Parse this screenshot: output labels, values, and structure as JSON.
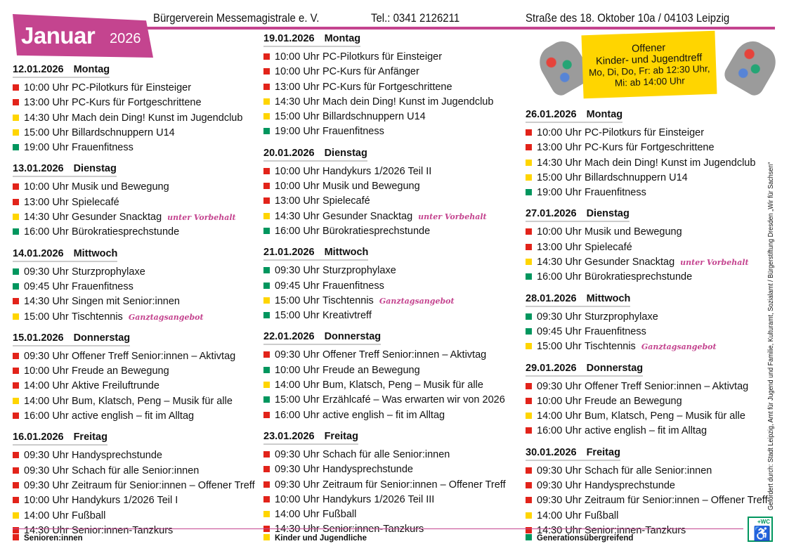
{
  "colors": {
    "senioren": "#e2231a",
    "kinder": "#ffd500",
    "generation": "#00965e",
    "accent": "#c4448f"
  },
  "header": {
    "month": "Januar",
    "year": "2026",
    "org": "Bürgerverein Messemagistrale e. V.",
    "phone": "Tel.: 0341 2126211",
    "address": "Straße des 18. Oktober 10a / 04103 Leipzig"
  },
  "promo": {
    "title1": "Offener",
    "title2": "Kinder- und Jugendtreff",
    "hours1": "Mo, Di, Do, Fr: ab 12:30 Uhr,",
    "hours2": "Mi: ab 14:00 Uhr"
  },
  "columns": [
    [
      {
        "date": "12.01.2026",
        "weekday": "Montag",
        "items": [
          [
            "r",
            "10:00 Uhr",
            "PC-Pilotkurs für Einsteiger"
          ],
          [
            "r",
            "13:00 Uhr",
            "PC-Kurs für Fortgeschrittene"
          ],
          [
            "y",
            "14:30 Uhr",
            "Mach dein Ding! Kunst im Jugendclub"
          ],
          [
            "y",
            "15:00 Uhr",
            "Billardschnuppern U14"
          ],
          [
            "g",
            "19:00 Uhr",
            "Frauenfitness"
          ]
        ]
      },
      {
        "date": "13.01.2026",
        "weekday": "Dienstag",
        "items": [
          [
            "r",
            "10:00 Uhr",
            "Musik und Bewegung"
          ],
          [
            "r",
            "13:00 Uhr",
            "Spielecafé"
          ],
          [
            "y",
            "14:30 Uhr",
            "Gesunder Snacktag",
            "unter Vorbehalt"
          ],
          [
            "g",
            "16:00 Uhr",
            "Bürokratiesprechstunde"
          ]
        ]
      },
      {
        "date": "14.01.2026",
        "weekday": "Mittwoch",
        "items": [
          [
            "g",
            "09:30 Uhr",
            "Sturzprophylaxe"
          ],
          [
            "g",
            "09:45 Uhr",
            "Frauenfitness"
          ],
          [
            "r",
            "14:30 Uhr",
            "Singen mit Senior:innen"
          ],
          [
            "y",
            "15:00 Uhr",
            "Tischtennis",
            "Ganztagsangebot"
          ]
        ]
      },
      {
        "date": "15.01.2026",
        "weekday": "Donnerstag",
        "items": [
          [
            "r",
            "09:30 Uhr",
            "Offener Treff Senior:innen – Aktivtag"
          ],
          [
            "r",
            "10:00 Uhr",
            "Freude an Bewegung"
          ],
          [
            "r",
            "14:00 Uhr",
            "Aktive Freiluftrunde"
          ],
          [
            "y",
            "14:00 Uhr",
            "Bum, Klatsch, Peng – Musik für alle"
          ],
          [
            "r",
            "16:00 Uhr",
            "active english – fit im Alltag"
          ]
        ]
      },
      {
        "date": "16.01.2026",
        "weekday": "Freitag",
        "items": [
          [
            "r",
            "09:30 Uhr",
            "Handysprechstunde"
          ],
          [
            "r",
            "09:30 Uhr",
            "Schach für alle Senior:innen"
          ],
          [
            "r",
            "09:30 Uhr",
            "Zeitraum für Senior:innen – Offener Treff"
          ],
          [
            "r",
            "10:00 Uhr",
            "Handykurs 1/2026 Teil I"
          ],
          [
            "y",
            "14:00 Uhr",
            "Fußball"
          ],
          [
            "r",
            "14:30 Uhr",
            "Senior:innen-Tanzkurs"
          ]
        ]
      }
    ],
    [
      {
        "date": "19.01.2026",
        "weekday": "Montag",
        "items": [
          [
            "r",
            "10:00 Uhr",
            "PC-Pilotkurs für Einsteiger"
          ],
          [
            "r",
            "10:00 Uhr",
            "PC-Kurs für Anfänger"
          ],
          [
            "r",
            "13:00 Uhr",
            "PC-Kurs für Fortgeschrittene"
          ],
          [
            "y",
            "14:30 Uhr",
            "Mach dein Ding! Kunst im Jugendclub"
          ],
          [
            "y",
            "15:00 Uhr",
            "Billardschnuppern U14"
          ],
          [
            "g",
            "19:00 Uhr",
            "Frauenfitness"
          ]
        ]
      },
      {
        "date": "20.01.2026",
        "weekday": "Dienstag",
        "items": [
          [
            "r",
            "10:00 Uhr",
            "Handykurs 1/2026 Teil II"
          ],
          [
            "r",
            "10:00 Uhr",
            "Musik und Bewegung"
          ],
          [
            "r",
            "13:00 Uhr",
            "Spielecafé"
          ],
          [
            "y",
            "14:30 Uhr",
            "Gesunder Snacktag",
            "unter Vorbehalt"
          ],
          [
            "g",
            "16:00 Uhr",
            "Bürokratiesprechstunde"
          ]
        ]
      },
      {
        "date": "21.01.2026",
        "weekday": "Mittwoch",
        "items": [
          [
            "g",
            "09:30 Uhr",
            "Sturzprophylaxe"
          ],
          [
            "g",
            "09:45 Uhr",
            "Frauenfitness"
          ],
          [
            "y",
            "15:00 Uhr",
            "Tischtennis",
            "Ganztagsangebot"
          ],
          [
            "g",
            "15:00 Uhr",
            "Kreativtreff"
          ]
        ]
      },
      {
        "date": "22.01.2026",
        "weekday": "Donnerstag",
        "items": [
          [
            "r",
            "09:30 Uhr",
            "Offener Treff Senior:innen – Aktivtag"
          ],
          [
            "g",
            "10:00 Uhr",
            "Freude an Bewegung"
          ],
          [
            "y",
            "14:00 Uhr",
            "Bum, Klatsch, Peng – Musik für alle"
          ],
          [
            "g",
            "15:00 Uhr",
            "Erzählcafé – Was erwarten wir von 2026"
          ],
          [
            "r",
            "16:00 Uhr",
            "active english – fit im Alltag"
          ]
        ]
      },
      {
        "date": "23.01.2026",
        "weekday": "Freitag",
        "items": [
          [
            "r",
            "09:30 Uhr",
            "Schach für alle Senior:innen"
          ],
          [
            "r",
            "09:30 Uhr",
            "Handysprechstunde"
          ],
          [
            "r",
            "09:30 Uhr",
            "Zeitraum für Senior:innen – Offener Treff"
          ],
          [
            "r",
            "10:00 Uhr",
            "Handykurs 1/2026 Teil III"
          ],
          [
            "y",
            "14:00 Uhr",
            "Fußball"
          ],
          [
            "r",
            "14:30 Uhr",
            "Senior:innen-Tanzkurs"
          ]
        ]
      }
    ],
    [
      {
        "date": "26.01.2026",
        "weekday": "Montag",
        "items": [
          [
            "r",
            "10:00 Uhr",
            "PC-Pilotkurs für Einsteiger"
          ],
          [
            "r",
            "13:00 Uhr",
            "PC-Kurs für Fortgeschrittene"
          ],
          [
            "y",
            "14:30 Uhr",
            "Mach dein Ding! Kunst im Jugendclub"
          ],
          [
            "y",
            "15:00 Uhr",
            "Billardschnuppern U14"
          ],
          [
            "g",
            "19:00 Uhr",
            "Frauenfitness"
          ]
        ]
      },
      {
        "date": "27.01.2026",
        "weekday": "Dienstag",
        "items": [
          [
            "r",
            "10:00 Uhr",
            "Musik und Bewegung"
          ],
          [
            "r",
            "13:00 Uhr",
            "Spielecafé"
          ],
          [
            "y",
            "14:30 Uhr",
            "Gesunder Snacktag",
            "unter Vorbehalt"
          ],
          [
            "g",
            "16:00 Uhr",
            "Bürokratiesprechstunde"
          ]
        ]
      },
      {
        "date": "28.01.2026",
        "weekday": "Mittwoch",
        "items": [
          [
            "g",
            "09:30 Uhr",
            "Sturzprophylaxe"
          ],
          [
            "g",
            "09:45 Uhr",
            "Frauenfitness"
          ],
          [
            "y",
            "15:00 Uhr",
            "Tischtennis",
            "Ganztagsangebot"
          ]
        ]
      },
      {
        "date": "29.01.2026",
        "weekday": "Donnerstag",
        "items": [
          [
            "r",
            "09:30 Uhr",
            "Offener Treff Senior:innen – Aktivtag"
          ],
          [
            "r",
            "10:00 Uhr",
            "Freude an Bewegung"
          ],
          [
            "y",
            "14:00 Uhr",
            "Bum, Klatsch, Peng – Musik für alle"
          ],
          [
            "r",
            "16:00 Uhr",
            "active english – fit im Alltag"
          ]
        ]
      },
      {
        "date": "30.01.2026",
        "weekday": "Freitag",
        "items": [
          [
            "r",
            "09:30 Uhr",
            "Schach für alle Senior:innen"
          ],
          [
            "r",
            "09:30 Uhr",
            "Handysprechstunde"
          ],
          [
            "r",
            "09:30 Uhr",
            "Zeitraum für Senior:innen – Offener Treff"
          ],
          [
            "y",
            "14:00 Uhr",
            "Fußball"
          ],
          [
            "r",
            "14:30 Uhr",
            "Senior:innen-Tanzkurs"
          ]
        ]
      }
    ]
  ],
  "legend": {
    "senioren": "Senioren:innen",
    "kinder": "Kinder und Jugendliche",
    "generation": "Generationsübergreifend"
  },
  "sponsor": "Gefördert durch: Stadt Leipzig, Amt für Jugend und Familie, Kulturamt, Sozialamt / Bürgerstiftung Dresden „Wir für Sachsen“",
  "wc_badge": "+WC"
}
